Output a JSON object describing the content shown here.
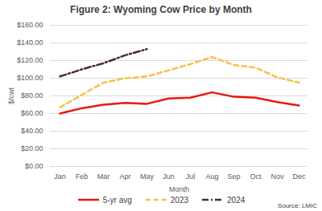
{
  "chart_data": {
    "type": "line",
    "title": "Figure 2: Wyoming Cow Price by Month",
    "x_label": "Month",
    "y_label": "$/cwt",
    "annotations": [
      "Source: LMIC"
    ],
    "categories": [
      "Jan",
      "Feb",
      "Mar",
      "Apr",
      "May",
      "Jun",
      "Jul",
      "Aug",
      "Sep",
      "Oct",
      "Nov",
      "Dec"
    ],
    "series": [
      {
        "name": "5-yr avg",
        "color": "#e8190f",
        "line_style": "solid",
        "values": [
          60,
          66,
          70,
          72,
          71,
          77,
          78,
          84,
          79,
          78,
          73,
          69
        ]
      },
      {
        "name": "2023",
        "color": "#f5c343",
        "line_style": "dashed",
        "values": [
          67,
          81,
          95,
          100,
          102,
          109,
          116,
          124,
          115,
          112,
          101,
          95
        ]
      },
      {
        "name": "2024",
        "color": "#4a2e24",
        "line_style": "dashdot",
        "values": [
          102,
          110,
          117,
          126,
          133,
          null,
          null,
          null,
          null,
          null,
          null,
          null
        ]
      }
    ],
    "ylim": [
      0,
      160
    ],
    "yticks": [
      {
        "value": 0,
        "label": "$0.00"
      },
      {
        "value": 20,
        "label": "$20.00"
      },
      {
        "value": 40,
        "label": "$40.00"
      },
      {
        "value": 60,
        "label": "$60.00"
      },
      {
        "value": 80,
        "label": "$80.00"
      },
      {
        "value": 100,
        "label": "$100.00"
      },
      {
        "value": 120,
        "label": "$120.00"
      },
      {
        "value": 140,
        "label": "$140.00"
      },
      {
        "value": 160,
        "label": "$160.00"
      }
    ],
    "grid": true,
    "legend": "bottom"
  }
}
